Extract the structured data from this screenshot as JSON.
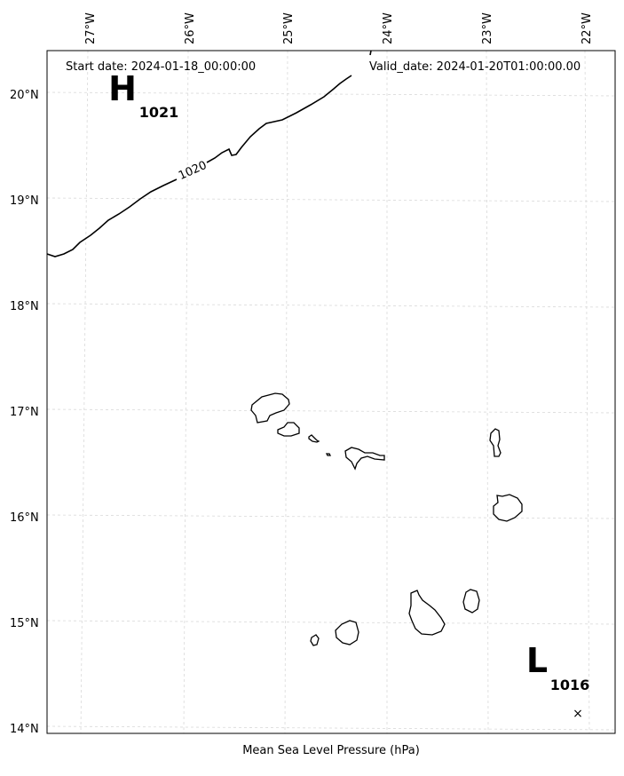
{
  "header": {
    "start_date": "Start date: 2024-01-18_00:00:00",
    "valid_date": "Valid_date: 2024-01-20T01:00:00.00"
  },
  "axes": {
    "longitude_labels": [
      "27°W",
      "26°W",
      "25°W",
      "24°W",
      "23°W",
      "22°W"
    ],
    "latitude_labels": [
      "20°N",
      "19°N",
      "18°N",
      "17°N",
      "16°N",
      "15°N",
      "14°N"
    ]
  },
  "pressure_systems": [
    {
      "type": "high",
      "letter": "H",
      "value": "1021"
    },
    {
      "type": "low",
      "letter": "L",
      "value": "1016"
    }
  ],
  "isobars": [
    {
      "level": "1020"
    }
  ],
  "footer": {
    "xlabel": "Mean Sea Level Pressure (hPa)"
  }
}
